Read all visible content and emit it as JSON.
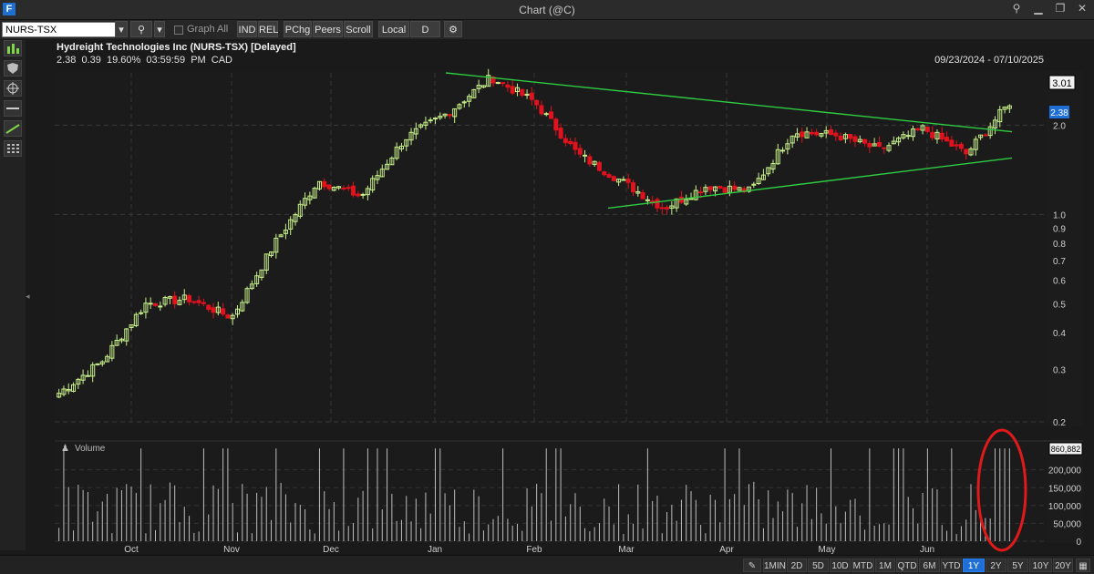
{
  "window": {
    "app_icon_letter": "F",
    "title": "Chart (@C)"
  },
  "toolbar": {
    "symbol_value": "NURS-TSX",
    "graph_all_label": "Graph All",
    "buttons": [
      "IND",
      "REL",
      "PChg",
      "Peers",
      "Scroll",
      "Local",
      "D"
    ]
  },
  "header": {
    "title": "Hydreight Technologies Inc (NURS-TSX) [Delayed]",
    "last": "2.38",
    "change": "0.39",
    "pct_change": "19.60%",
    "time": "03:59:59 PM",
    "currency": "CAD",
    "date_range": "09/23/2024 - 07/10/2025"
  },
  "price_axis": {
    "ticks": [
      "2.0",
      "1.0",
      "0.9",
      "0.8",
      "0.7",
      "0.6",
      "0.5",
      "0.4",
      "0.3",
      "0.2"
    ],
    "high_marker": "3.01",
    "last_marker": "2.38"
  },
  "volume": {
    "label": "Volume",
    "max_marker": "860,882",
    "ticks": [
      "200,000",
      "150,000",
      "100,000",
      "50,000",
      "0"
    ]
  },
  "months": [
    "Oct",
    "Nov",
    "Dec",
    "Jan",
    "Feb",
    "Mar",
    "Apr",
    "May",
    "Jun"
  ],
  "timeframes": [
    "1MIN",
    "2D",
    "5D",
    "10D",
    "MTD",
    "1M",
    "QTD",
    "6M",
    "YTD",
    "1Y",
    "2Y",
    "5Y",
    "10Y",
    "20Y"
  ],
  "active_timeframe": "1Y",
  "colors": {
    "up": "#c8f08a",
    "down": "#e0121e",
    "trendline": "#2ecc40",
    "highlight_ellipse": "#e01a1a",
    "active_button": "#1f6fd6"
  },
  "chart_data": {
    "type": "candlestick",
    "title": "Hydreight Technologies Inc (NURS-TSX) [Delayed]",
    "y_scale": "log",
    "ylim": [
      0.2,
      3.0
    ],
    "x_range": [
      "09/23/2024",
      "07/10/2025"
    ],
    "approx_close_path": [
      {
        "x": "Sep 2024",
        "y": 0.25
      },
      {
        "x": "Oct 2024",
        "y": 0.32
      },
      {
        "x": "Oct 2024",
        "y": 0.5
      },
      {
        "x": "Nov 2024",
        "y": 0.52
      },
      {
        "x": "Nov 2024",
        "y": 0.45
      },
      {
        "x": "Nov 2024",
        "y": 0.8
      },
      {
        "x": "Nov 2024",
        "y": 1.3
      },
      {
        "x": "Dec 2024",
        "y": 1.15
      },
      {
        "x": "Dec 2024",
        "y": 1.8
      },
      {
        "x": "Dec 2024",
        "y": 2.2
      },
      {
        "x": "Jan 2025",
        "y": 2.9
      },
      {
        "x": "Jan 2025",
        "y": 2.4
      },
      {
        "x": "Feb 2025",
        "y": 1.6
      },
      {
        "x": "Feb 2025",
        "y": 1.3
      },
      {
        "x": "Mar 2025",
        "y": 1.05
      },
      {
        "x": "Mar 2025",
        "y": 1.25
      },
      {
        "x": "Apr 2025",
        "y": 1.2
      },
      {
        "x": "Apr 2025",
        "y": 1.9
      },
      {
        "x": "May 2025",
        "y": 1.85
      },
      {
        "x": "May 2025",
        "y": 1.65
      },
      {
        "x": "Jun 2025",
        "y": 1.95
      },
      {
        "x": "Jun 2025",
        "y": 1.6
      },
      {
        "x": "Jul 2025",
        "y": 2.38
      }
    ],
    "trendlines": [
      {
        "name": "upper",
        "from": {
          "x": "Jan 2025",
          "y": 3.0
        },
        "to": {
          "x": "Jul 2025",
          "y": 1.9
        }
      },
      {
        "name": "lower",
        "from": {
          "x": "Mar 2025",
          "y": 1.05
        },
        "to": {
          "x": "Jul 2025",
          "y": 1.55
        }
      }
    ]
  }
}
